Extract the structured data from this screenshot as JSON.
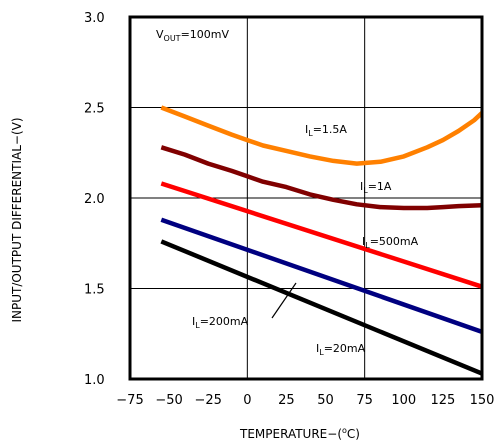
{
  "chart_data": {
    "type": "line",
    "xlabel_main": "TEMPERATURE−(",
    "xlabel_unit_deg": "o",
    "xlabel_unit_rest": "C)",
    "ylabel": "INPUT/OUTPUT DIFFERENTIAL−(V)",
    "xlim": [
      -75,
      150
    ],
    "ylim": [
      1.0,
      3.0
    ],
    "x_ticks": [
      "−75",
      "−50",
      "−25",
      "0",
      "25",
      "50",
      "75",
      "100",
      "125",
      "150"
    ],
    "y_ticks": [
      "1.0",
      "1.5",
      "2.0",
      "2.5",
      "3.0"
    ],
    "grid": true,
    "vout_annotation": {
      "main": "V",
      "sub": "OUT",
      "rest": "=100mV"
    },
    "series": [
      {
        "name": "I_L=1.5A",
        "label_main": "I",
        "label_sub": "L",
        "label_rest": "=1.5A",
        "color": "#ff8000",
        "x": [
          -55,
          -40,
          -25,
          -10,
          0,
          10,
          25,
          40,
          55,
          70,
          85,
          100,
          115,
          125,
          135,
          145,
          150
        ],
        "y": [
          2.5,
          2.45,
          2.4,
          2.35,
          2.32,
          2.29,
          2.26,
          2.23,
          2.205,
          2.19,
          2.2,
          2.23,
          2.28,
          2.32,
          2.37,
          2.43,
          2.47
        ]
      },
      {
        "name": "I_L=1A",
        "label_main": "I",
        "label_sub": "L",
        "label_rest": "=1A",
        "color": "#800000",
        "x": [
          -55,
          -40,
          -25,
          -10,
          0,
          10,
          25,
          40,
          55,
          70,
          85,
          100,
          115,
          125,
          135,
          150
        ],
        "y": [
          2.28,
          2.24,
          2.19,
          2.15,
          2.12,
          2.09,
          2.06,
          2.02,
          1.99,
          1.965,
          1.95,
          1.945,
          1.945,
          1.95,
          1.955,
          1.96
        ]
      },
      {
        "name": "I_L=500mA",
        "label_main": "I",
        "label_sub": "L",
        "label_rest": "=500mA",
        "color": "#ff0000",
        "x": [
          -55,
          150
        ],
        "y": [
          2.08,
          1.51
        ]
      },
      {
        "name": "I_L=200mA",
        "label_main": "I",
        "label_sub": "L",
        "label_rest": "=200mA",
        "color": "#000080",
        "x": [
          -55,
          150
        ],
        "y": [
          1.88,
          1.26
        ]
      },
      {
        "name": "I_L=20mA",
        "label_main": "I",
        "label_sub": "L",
        "label_rest": "=20mA",
        "color": "#000000",
        "x": [
          -55,
          150
        ],
        "y": [
          1.76,
          1.03
        ]
      }
    ]
  }
}
